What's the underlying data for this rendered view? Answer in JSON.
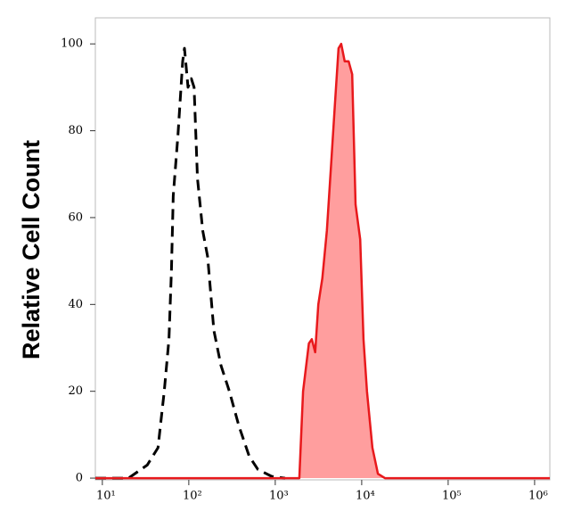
{
  "chart_data": {
    "type": "line",
    "y_label": "Relative Cell Count",
    "xscale": "log",
    "xlim": [
      8.3,
      1500000
    ],
    "ylim": [
      -0.4,
      106
    ],
    "xticks": [
      {
        "value": 10,
        "label": "10¹"
      },
      {
        "value": 100,
        "label": "10²"
      },
      {
        "value": 1000,
        "label": "10³"
      },
      {
        "value": 10000,
        "label": "10⁴"
      },
      {
        "value": 100000,
        "label": "10⁵"
      },
      {
        "value": 1000000,
        "label": "10⁶"
      }
    ],
    "yticks": [
      0,
      20,
      40,
      60,
      80,
      100
    ],
    "series": [
      {
        "color": "#000000",
        "dash": true,
        "fill": null,
        "x": [
          8.3,
          20,
          33,
          44,
          52,
          59,
          63,
          66,
          75,
          85,
          89,
          98,
          107,
          115,
          126,
          145,
          165,
          195,
          235,
          295,
          380,
          500,
          630,
          910,
          1300
        ],
        "values": [
          0,
          0,
          3,
          7,
          20,
          32,
          48,
          65,
          79,
          96,
          99,
          90,
          92,
          90,
          69,
          57,
          51,
          34,
          26,
          20,
          12,
          5,
          2,
          0.4,
          0
        ]
      },
      {
        "color": "#e8191c",
        "dash": false,
        "fill": "#ff9e9e",
        "x": [
          8.3,
          1900,
          2100,
          2450,
          2650,
          2900,
          3150,
          3500,
          3950,
          4450,
          4900,
          5400,
          5800,
          6350,
          7050,
          7750,
          8500,
          9600,
          10500,
          11500,
          13300,
          15400,
          18600,
          68000,
          1500000
        ],
        "values": [
          0,
          0,
          20,
          31,
          32,
          29,
          40,
          46,
          57,
          73,
          86,
          99,
          100,
          96,
          96,
          93,
          63,
          55,
          32,
          20,
          7,
          1,
          0,
          0,
          0
        ]
      }
    ]
  }
}
